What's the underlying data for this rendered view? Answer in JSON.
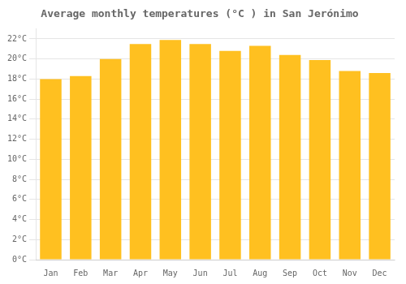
{
  "chart_data": {
    "type": "bar",
    "title": "Average monthly temperatures (°C ) in San Jerónimo",
    "categories": [
      "Jan",
      "Feb",
      "Mar",
      "Apr",
      "May",
      "Jun",
      "Jul",
      "Aug",
      "Sep",
      "Oct",
      "Nov",
      "Dec"
    ],
    "values": [
      18.0,
      18.3,
      20.0,
      21.5,
      21.9,
      21.5,
      20.8,
      21.3,
      20.4,
      19.9,
      18.8,
      18.6
    ],
    "color": "#FFC020",
    "ylim": [
      0,
      23
    ],
    "yticks": [
      {
        "value": 0,
        "label": "0°C"
      },
      {
        "value": 2,
        "label": "2°C"
      },
      {
        "value": 4,
        "label": "4°C"
      },
      {
        "value": 6,
        "label": "6°C"
      },
      {
        "value": 8,
        "label": "8°C"
      },
      {
        "value": 10,
        "label": "10°C"
      },
      {
        "value": 12,
        "label": "12°C"
      },
      {
        "value": 14,
        "label": "14°C"
      },
      {
        "value": 16,
        "label": "16°C"
      },
      {
        "value": 18,
        "label": "18°C"
      },
      {
        "value": 20,
        "label": "20°C"
      },
      {
        "value": 22,
        "label": "22°C"
      }
    ],
    "grid": true
  }
}
